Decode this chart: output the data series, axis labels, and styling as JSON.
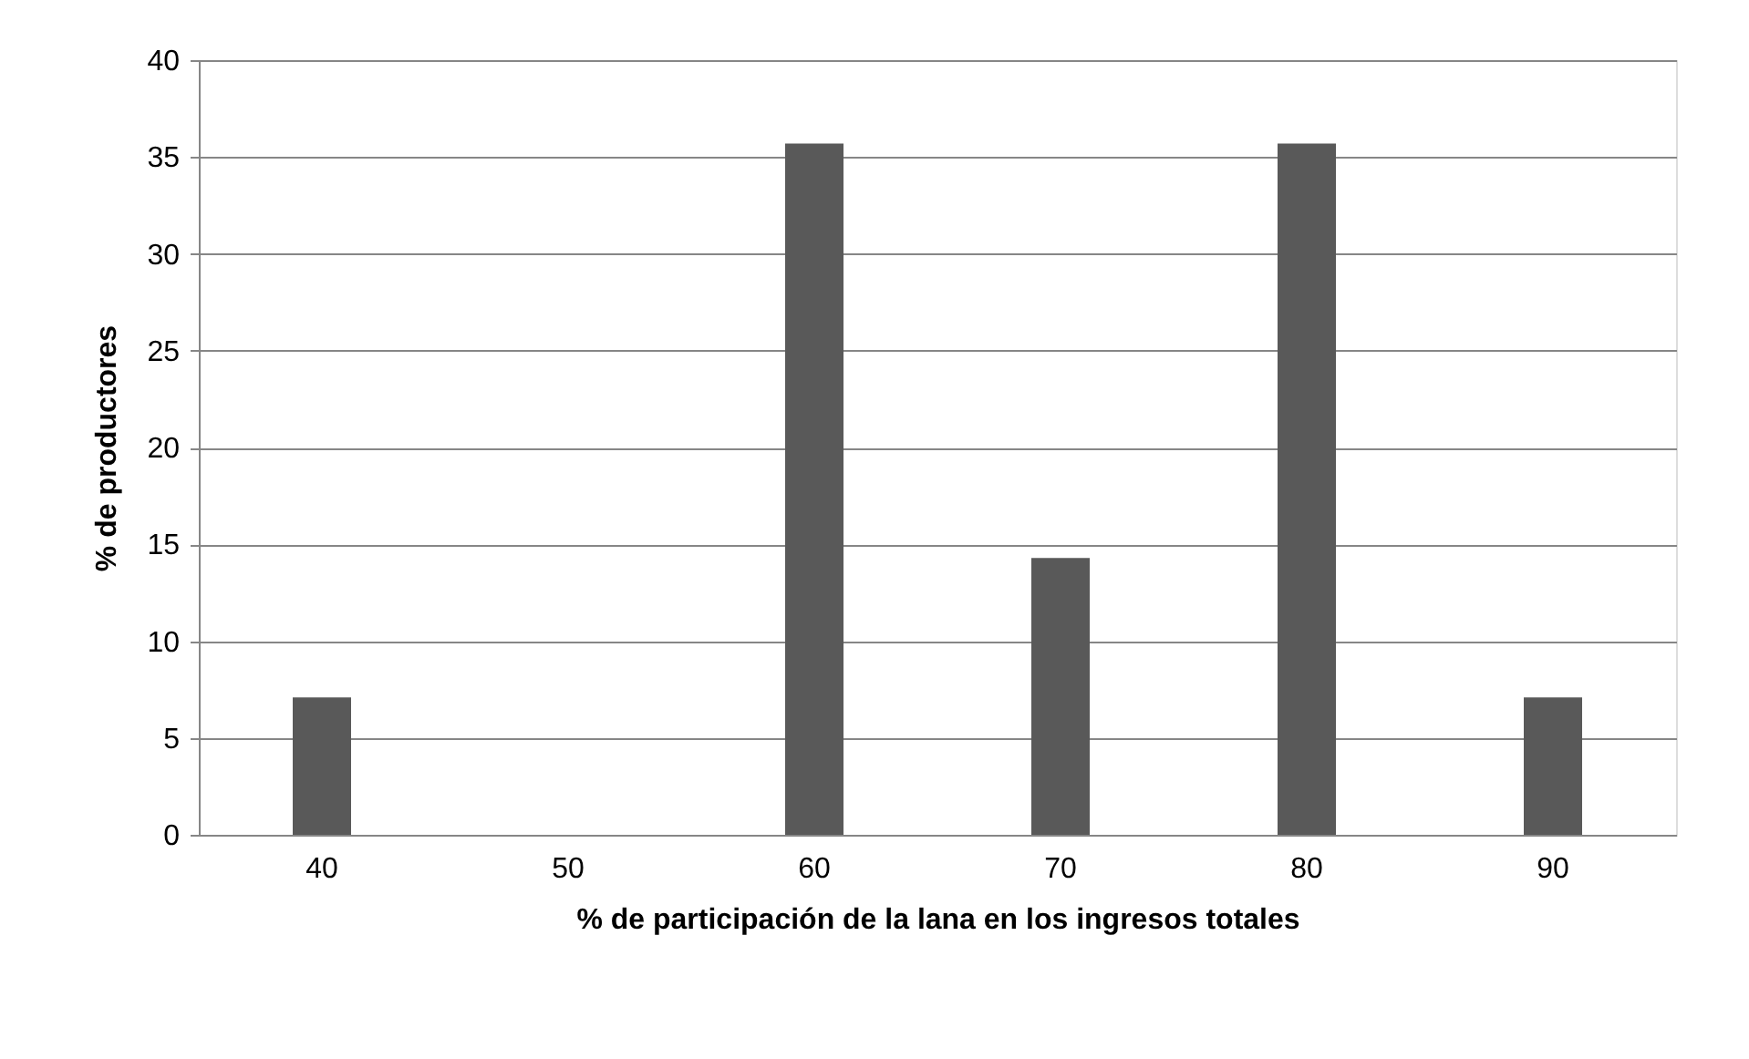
{
  "chart_data": {
    "type": "bar",
    "xlabel": "% de participación de la lana en los ingresos totales",
    "ylabel": "% de productores",
    "categories": [
      "40",
      "50",
      "60",
      "70",
      "80",
      "90"
    ],
    "values": [
      7.1,
      0,
      35.7,
      14.3,
      35.7,
      7.1
    ],
    "color": "#595959",
    "ylim": [
      0,
      40
    ],
    "yticks": [
      0,
      5,
      10,
      15,
      20,
      25,
      30,
      35,
      40
    ],
    "grid": "y"
  }
}
